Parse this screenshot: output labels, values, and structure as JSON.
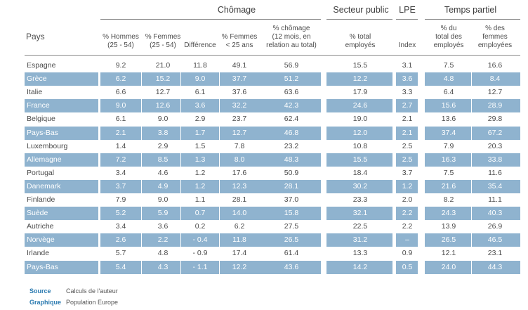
{
  "groups": {
    "chomage": "Chômage",
    "secteur_public": "Secteur public",
    "lpe": "LPE",
    "temps_partiel": "Temps partiel"
  },
  "headers": {
    "pays": "Pays",
    "hommes": [
      "% Hommes",
      "(25 - 54)"
    ],
    "femmes": [
      "% Femmes",
      "(25 - 54)"
    ],
    "difference": [
      "Différence"
    ],
    "femmes25": [
      "% Femmes",
      "< 25 ans"
    ],
    "chomage12": [
      "% chômage",
      "(12 mois, en",
      "relation au total)"
    ],
    "total_employes": [
      "% total",
      "employés"
    ],
    "index": [
      "Index"
    ],
    "total_des_employes": [
      "% du",
      "total des",
      "employés"
    ],
    "des_femmes_employees": [
      "% des",
      "femmes",
      "employées"
    ]
  },
  "rows": [
    {
      "pays": "Espagne",
      "hommes": "9.2",
      "femmes": "21.0",
      "diff": "11.8",
      "femmes25": "49.1",
      "chom12": "56.9",
      "sect": "15.5",
      "lpe": "3.1",
      "tp_total": "7.5",
      "tp_femmes": "16.6",
      "shaded": false
    },
    {
      "pays": "Grèce",
      "hommes": "6.2",
      "femmes": "15.2",
      "diff": "9.0",
      "femmes25": "37.7",
      "chom12": "51.2",
      "sect": "12.2",
      "lpe": "3.6",
      "tp_total": "4.8",
      "tp_femmes": "8.4",
      "shaded": true
    },
    {
      "pays": "Italie",
      "hommes": "6.6",
      "femmes": "12.7",
      "diff": "6.1",
      "femmes25": "37.6",
      "chom12": "63.6",
      "sect": "17.9",
      "lpe": "3.3",
      "tp_total": "6.4",
      "tp_femmes": "12.7",
      "shaded": false
    },
    {
      "pays": "France",
      "hommes": "9.0",
      "femmes": "12.6",
      "diff": "3.6",
      "femmes25": "32.2",
      "chom12": "42.3",
      "sect": "24.6",
      "lpe": "2.7",
      "tp_total": "15.6",
      "tp_femmes": "28.9",
      "shaded": true
    },
    {
      "pays": "Belgique",
      "hommes": "6.1",
      "femmes": "9.0",
      "diff": "2.9",
      "femmes25": "23.7",
      "chom12": "62.4",
      "sect": "19.0",
      "lpe": "2.1",
      "tp_total": "13.6",
      "tp_femmes": "29.8",
      "shaded": false
    },
    {
      "pays": "Pays-Bas",
      "hommes": "2.1",
      "femmes": "3.8",
      "diff": "1.7",
      "femmes25": "12.7",
      "chom12": "46.8",
      "sect": "12.0",
      "lpe": "2.1",
      "tp_total": "37.4",
      "tp_femmes": "67.2",
      "shaded": true
    },
    {
      "pays": "Luxembourg",
      "hommes": "1.4",
      "femmes": "2.9",
      "diff": "1.5",
      "femmes25": "7.8",
      "chom12": "23.2",
      "sect": "10.8",
      "lpe": "2.5",
      "tp_total": "7.9",
      "tp_femmes": "20.3",
      "shaded": false
    },
    {
      "pays": "Allemagne",
      "hommes": "7.2",
      "femmes": "8.5",
      "diff": "1.3",
      "femmes25": "8.0",
      "chom12": "48.3",
      "sect": "15.5",
      "lpe": "2.5",
      "tp_total": "16.3",
      "tp_femmes": "33.8",
      "shaded": true
    },
    {
      "pays": "Portugal",
      "hommes": "3.4",
      "femmes": "4.6",
      "diff": "1.2",
      "femmes25": "17.6",
      "chom12": "50.9",
      "sect": "18.4",
      "lpe": "3.7",
      "tp_total": "7.5",
      "tp_femmes": "11.6",
      "shaded": false
    },
    {
      "pays": "Danemark",
      "hommes": "3.7",
      "femmes": "4.9",
      "diff": "1.2",
      "femmes25": "12.3",
      "chom12": "28.1",
      "sect": "30.2",
      "lpe": "1.2",
      "tp_total": "21.6",
      "tp_femmes": "35.4",
      "shaded": true
    },
    {
      "pays": "Finlande",
      "hommes": "7.9",
      "femmes": "9.0",
      "diff": "1.1",
      "femmes25": "28.1",
      "chom12": "37.0",
      "sect": "23.3",
      "lpe": "2.0",
      "tp_total": "8.2",
      "tp_femmes": "11.1",
      "shaded": false
    },
    {
      "pays": "Suède",
      "hommes": "5.2",
      "femmes": "5.9",
      "diff": "0.7",
      "femmes25": "14.0",
      "chom12": "15.8",
      "sect": "32.1",
      "lpe": "2.2",
      "tp_total": "24.3",
      "tp_femmes": "40.3",
      "shaded": true
    },
    {
      "pays": "Autriche",
      "hommes": "3.4",
      "femmes": "3.6",
      "diff": "0.2",
      "femmes25": "6.2",
      "chom12": "27.5",
      "sect": "22.5",
      "lpe": "2.2",
      "tp_total": "13.9",
      "tp_femmes": "26.9",
      "shaded": false
    },
    {
      "pays": "Norvège",
      "hommes": "2.6",
      "femmes": "2.2",
      "diff": "- 0.4",
      "femmes25": "11.8",
      "chom12": "26.5",
      "sect": "31.2",
      "lpe": "–",
      "tp_total": "26.5",
      "tp_femmes": "46.5",
      "shaded": true
    },
    {
      "pays": "Irlande",
      "hommes": "5.7",
      "femmes": "4.8",
      "diff": "- 0.9",
      "femmes25": "17.4",
      "chom12": "61.4",
      "sect": "13.3",
      "lpe": "0.9",
      "tp_total": "12.1",
      "tp_femmes": "23.1",
      "shaded": false
    },
    {
      "pays": "Pays-Bas",
      "hommes": "5.4",
      "femmes": "4.3",
      "diff": "- 1.1",
      "femmes25": "12.2",
      "chom12": "43.6",
      "sect": "14.2",
      "lpe": "0.5",
      "tp_total": "24.0",
      "tp_femmes": "44.3",
      "shaded": true
    }
  ],
  "footer": {
    "source_label": "Source",
    "source_value": "Calculs de l'auteur",
    "graphique_label": "Graphique",
    "graphique_value": "Population Europe"
  },
  "colors": {
    "shade": "#8fb3cf",
    "accent": "#2a7ab0"
  }
}
